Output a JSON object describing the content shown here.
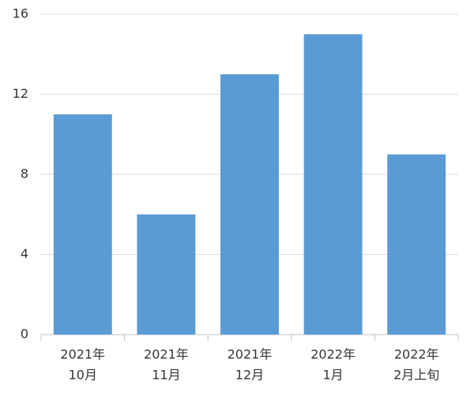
{
  "chart_data": {
    "type": "bar",
    "categories": [
      [
        "2021年",
        "10月"
      ],
      [
        "2021年",
        "11月"
      ],
      [
        "2021年",
        "12月"
      ],
      [
        "2022年",
        "1月"
      ],
      [
        "2022年",
        "2月上旬"
      ]
    ],
    "values": [
      11,
      6,
      13,
      15,
      9
    ],
    "color": "#5b9bd5",
    "ylim": [
      0,
      16
    ],
    "yticks": [
      0,
      4,
      8,
      12,
      16
    ],
    "grid": true
  }
}
